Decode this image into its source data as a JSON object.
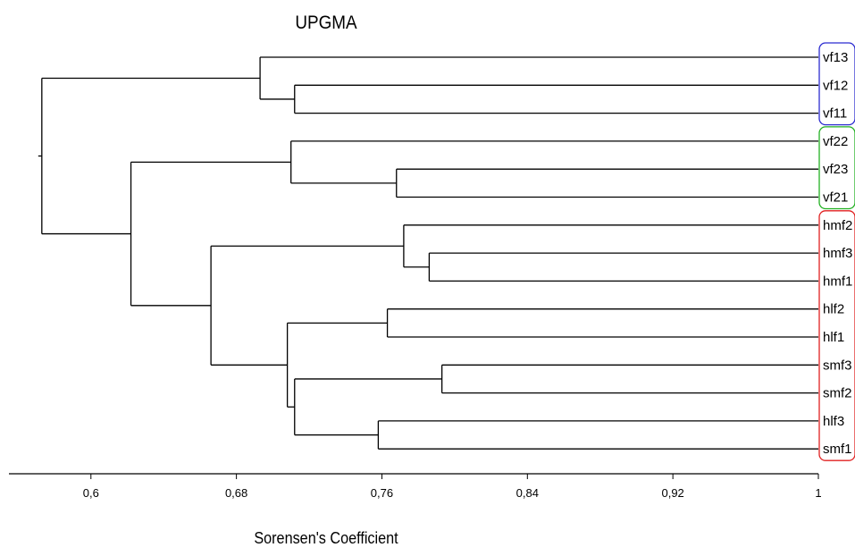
{
  "chart_data": {
    "type": "dendrogram",
    "title": "UPGMA",
    "xlabel": "Sorensen's Coefficient",
    "xlim": [
      0.55,
      1.0
    ],
    "ticks": [
      {
        "value": 0.6,
        "label": "0,6"
      },
      {
        "value": 0.68,
        "label": "0,68"
      },
      {
        "value": 0.76,
        "label": "0,76"
      },
      {
        "value": 0.84,
        "label": "0,84"
      },
      {
        "value": 0.92,
        "label": "0,92"
      },
      {
        "value": 1.0,
        "label": "1"
      }
    ],
    "leaves": [
      "vf13",
      "vf12",
      "vf11",
      "vf22",
      "vf23",
      "vf21",
      "hmf2",
      "hmf3",
      "hmf1",
      "hlf2",
      "hlf1",
      "smf3",
      "smf2",
      "hlf3",
      "smf1"
    ],
    "merges": [
      {
        "a": "L1",
        "b": "L2",
        "sim": 0.712,
        "id": "N1"
      },
      {
        "a": "L0",
        "b": "N1",
        "sim": 0.693,
        "id": "N2"
      },
      {
        "a": "L4",
        "b": "L5",
        "sim": 0.768,
        "id": "N3"
      },
      {
        "a": "L3",
        "b": "N3",
        "sim": 0.71,
        "id": "N4"
      },
      {
        "a": "L7",
        "b": "L8",
        "sim": 0.786,
        "id": "N5"
      },
      {
        "a": "L6",
        "b": "N5",
        "sim": 0.772,
        "id": "N6"
      },
      {
        "a": "L9",
        "b": "L10",
        "sim": 0.763,
        "id": "N7"
      },
      {
        "a": "L11",
        "b": "L12",
        "sim": 0.793,
        "id": "N8"
      },
      {
        "a": "L13",
        "b": "L14",
        "sim": 0.758,
        "id": "N9"
      },
      {
        "a": "N8",
        "b": "N9",
        "sim": 0.712,
        "id": "N10"
      },
      {
        "a": "N7",
        "b": "N10",
        "sim": 0.708,
        "id": "N11"
      },
      {
        "a": "N6",
        "b": "N11",
        "sim": 0.666,
        "id": "N12"
      },
      {
        "a": "N4",
        "b": "N12",
        "sim": 0.622,
        "id": "N13"
      },
      {
        "a": "N2",
        "b": "N13",
        "sim": 0.573,
        "id": "N14"
      }
    ],
    "groups": [
      {
        "leaves": [
          "vf13",
          "vf12",
          "vf11"
        ],
        "color": "#2b2bd0"
      },
      {
        "leaves": [
          "vf22",
          "vf23",
          "vf21"
        ],
        "color": "#22b022"
      },
      {
        "leaves": [
          "hmf2",
          "hmf3",
          "hmf1",
          "hlf2",
          "hlf1",
          "smf3",
          "smf2",
          "hlf3",
          "smf1"
        ],
        "color": "#e02020"
      }
    ]
  }
}
